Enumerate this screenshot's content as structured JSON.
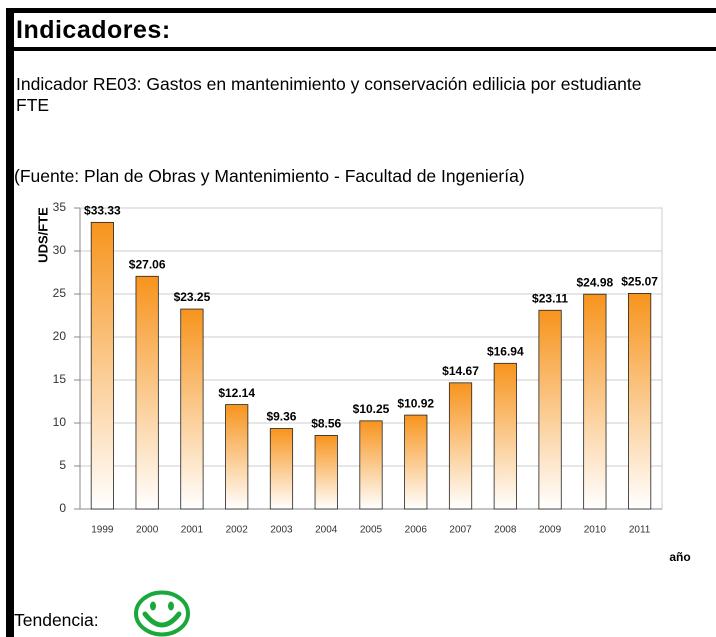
{
  "header": {
    "title": "Indicadores:"
  },
  "indicator": "Indicador RE03: Gastos en mantenimiento y conservación edilicia por estudiante FTE",
  "source": "(Fuente: Plan de Obras y Mantenimiento - Facultad de Ingeniería)",
  "chart_data": {
    "type": "bar",
    "categories": [
      "1999",
      "2000",
      "2001",
      "2002",
      "2003",
      "2004",
      "2005",
      "2006",
      "2007",
      "2008",
      "2009",
      "2010",
      "2011"
    ],
    "values": [
      33.33,
      27.06,
      23.25,
      12.14,
      9.36,
      8.56,
      10.25,
      10.92,
      14.67,
      16.94,
      23.11,
      24.98,
      25.07
    ],
    "value_labels": [
      "$33.33",
      "$27.06",
      "$23.25",
      "$12.14",
      "$9.36",
      "$8.56",
      "$10.25",
      "$10.92",
      "$14.67",
      "$16.94",
      "$23.11",
      "$24.98",
      "$25.07"
    ],
    "color": "#f7941d",
    "ylabel": "UDS/FTE",
    "xlabel": "año",
    "ylim": [
      0,
      35
    ],
    "yticks": [
      0,
      5,
      10,
      15,
      20,
      25,
      30,
      35
    ],
    "grid": true
  },
  "trend_label": "Tendencia:"
}
